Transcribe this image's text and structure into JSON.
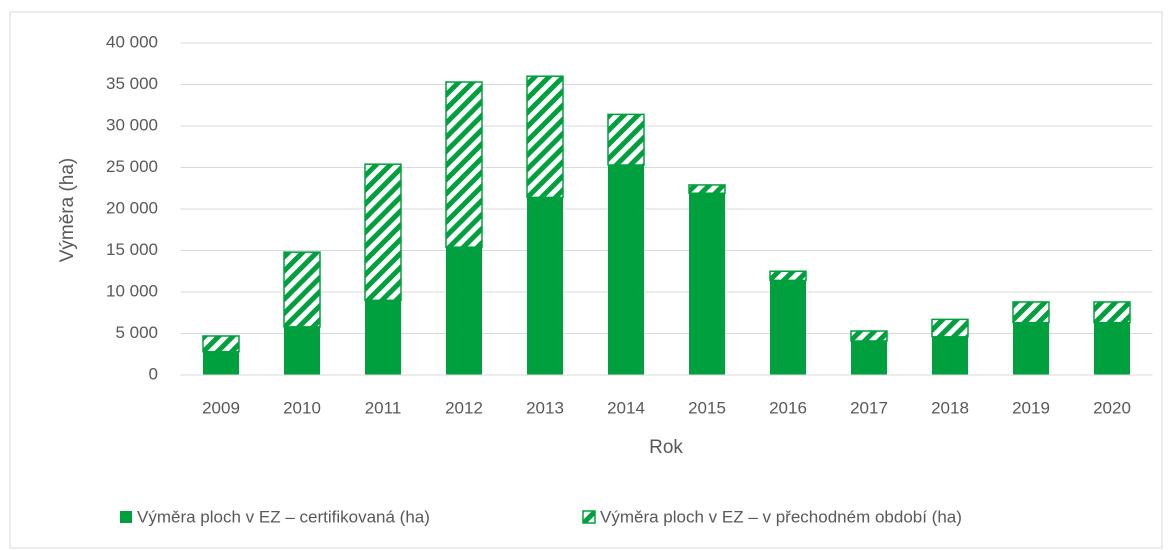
{
  "chart_data": {
    "type": "stacked_bar",
    "x_label": "Rok",
    "y_label": "Výměra (ha)",
    "categories": [
      "2009",
      "2010",
      "2011",
      "2012",
      "2013",
      "2014",
      "2015",
      "2016",
      "2017",
      "2018",
      "2019",
      "2020"
    ],
    "series": [
      {
        "name": "Výměra ploch v EZ –  certifikovaná (ha)",
        "color": "#00a03e",
        "pattern": "solid",
        "values": [
          2800,
          5800,
          9000,
          15400,
          21400,
          25300,
          21900,
          11400,
          4100,
          4600,
          6300,
          6300
        ]
      },
      {
        "name": "Výměra ploch v EZ – v přechodném období (ha)",
        "color": "#00a03e",
        "pattern": "hatch",
        "values": [
          1900,
          9000,
          16400,
          19900,
          14600,
          6100,
          1000,
          1100,
          1200,
          2100,
          2500,
          2500
        ]
      }
    ],
    "ylim": [
      0,
      40000
    ],
    "yticks": [
      0,
      {
        "value": 5000,
        "label": "5 000"
      },
      {
        "value": 10000,
        "label": "10 000"
      },
      {
        "value": 15000,
        "label": "15 000"
      },
      {
        "value": 20000,
        "label": "20 000"
      },
      {
        "value": 25000,
        "label": "25 000"
      },
      {
        "value": 30000,
        "label": "30 000"
      },
      {
        "value": 35000,
        "label": "35 000"
      },
      {
        "value": 40000,
        "label": "40 000"
      }
    ],
    "grid": true,
    "legend": "bottom"
  }
}
